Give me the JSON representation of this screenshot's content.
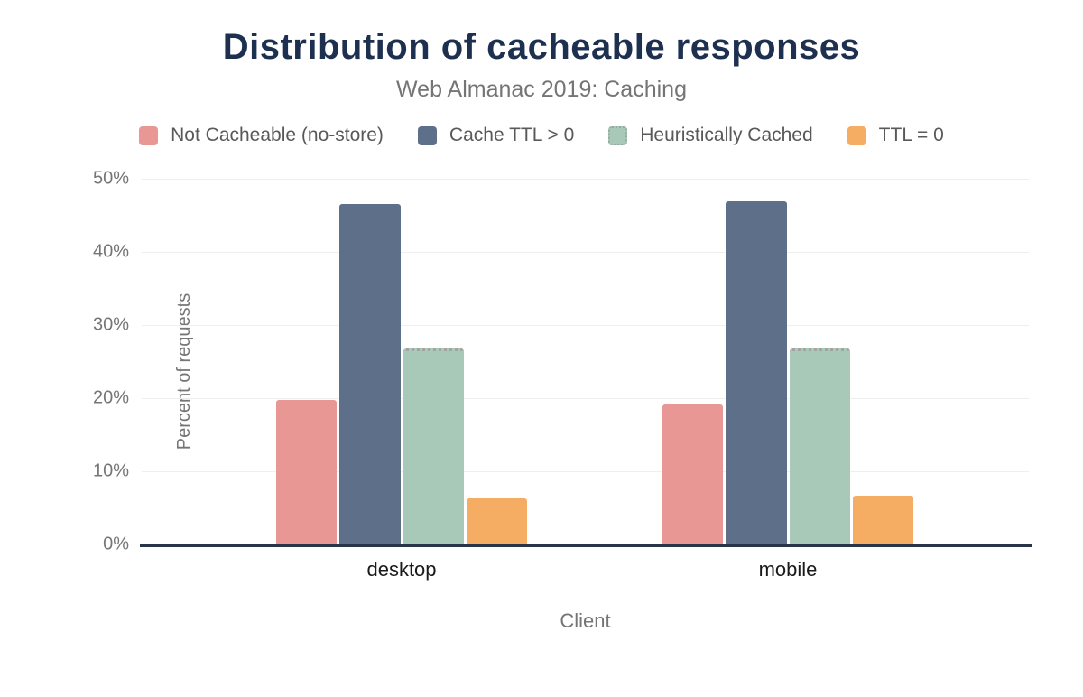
{
  "chart": {
    "title": "Distribution of cacheable responses",
    "subtitle": "Web Almanac 2019: Caching"
  },
  "chart_data": {
    "type": "bar",
    "title": "Distribution of cacheable responses",
    "subtitle": "Web Almanac 2019: Caching",
    "categories": [
      "desktop",
      "mobile"
    ],
    "series": [
      {
        "name": "Not Cacheable (no-store)",
        "color": "#e89795",
        "values": [
          19.8,
          19.1
        ]
      },
      {
        "name": "Cache TTL > 0",
        "color": "#5e7089",
        "values": [
          46.6,
          46.9
        ]
      },
      {
        "name": "Heuristically Cached",
        "color": "#a8c8b8",
        "values": [
          26.8,
          26.8
        ],
        "style": "dotted-top"
      },
      {
        "name": "TTL = 0",
        "color": "#f5ad63",
        "values": [
          6.3,
          6.7
        ]
      }
    ],
    "xlabel": "Client",
    "ylabel": "Percent of requests",
    "ylim": [
      0,
      50
    ],
    "yticks": [
      "0%",
      "10%",
      "20%",
      "30%",
      "40%",
      "50%"
    ],
    "grid": true,
    "legend_position": "top"
  },
  "colors": {
    "title_text": "#1e3050",
    "muted_text": "#757575",
    "legend_text": "#595959",
    "category_text": "#1a1a1a",
    "axis_line": "#283447",
    "gridline": "#efefef",
    "background": "#ffffff"
  }
}
